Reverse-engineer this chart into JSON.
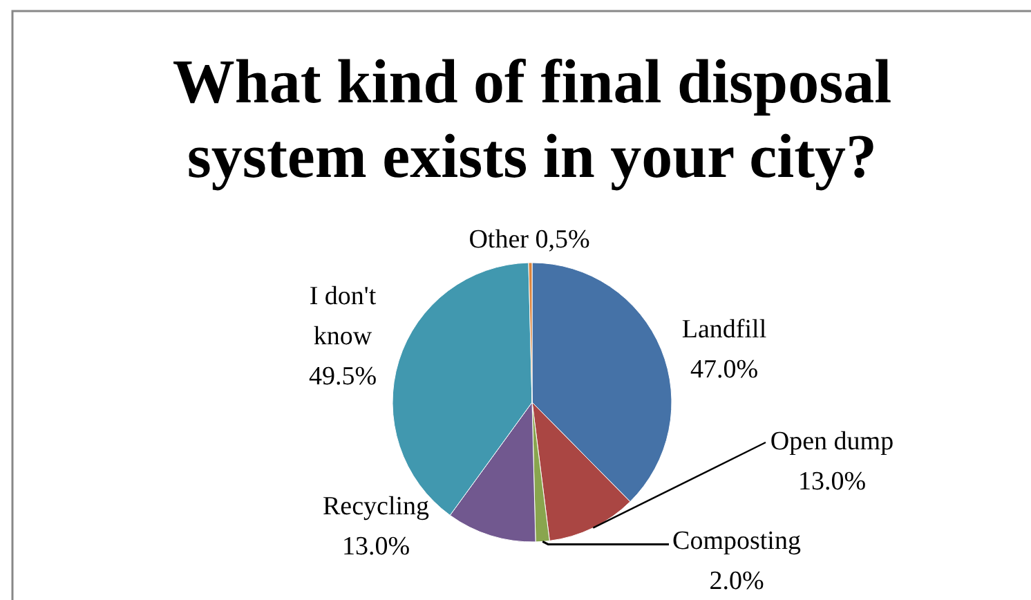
{
  "chart_data": {
    "type": "pie",
    "title": "What kind of final disposal system exists in your city?",
    "categories": [
      "Landfill",
      "Open dump",
      "Composting",
      "Recycling",
      "I don't know",
      "Other"
    ],
    "values": [
      47.0,
      13.0,
      2.0,
      13.0,
      49.5,
      0.5
    ],
    "value_labels": [
      "47.0%",
      "13.0%",
      "2.0%",
      "13.0%",
      "49.5%",
      "0,5%"
    ],
    "colors": [
      "#4572a7",
      "#aa4643",
      "#89a54e",
      "#71588f",
      "#4198af",
      "#db843d"
    ]
  }
}
